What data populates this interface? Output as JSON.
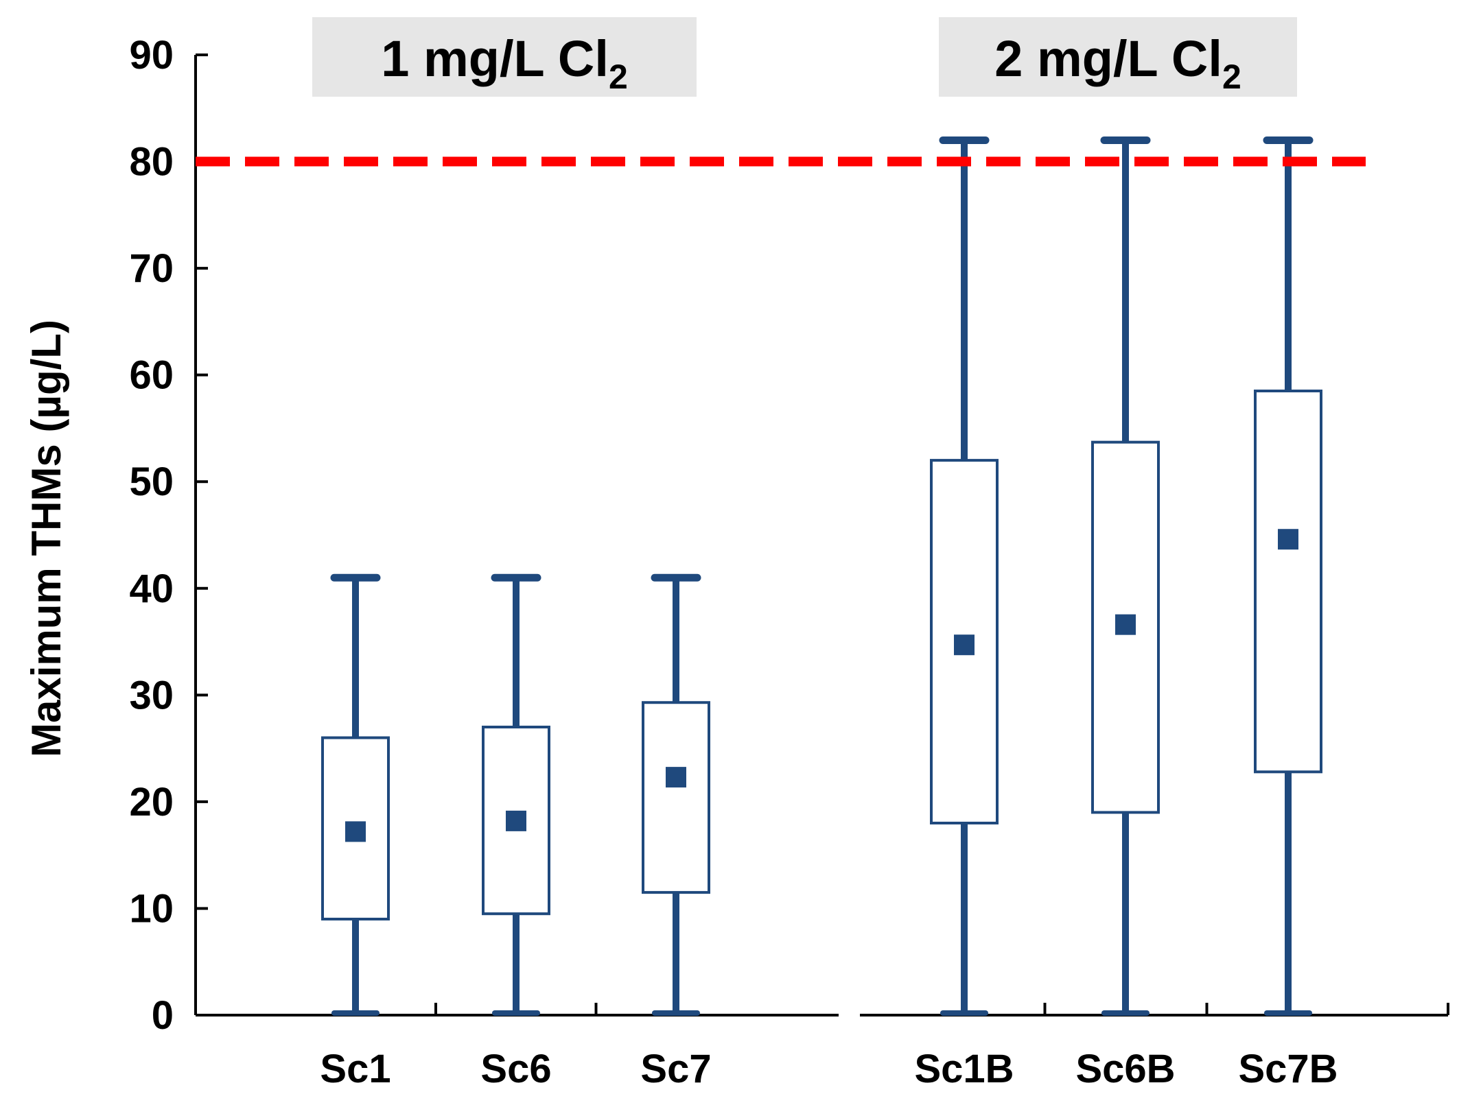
{
  "chart_data": {
    "type": "box",
    "title": "",
    "xlabel": "",
    "ylabel": "Maximum THMs  (µg/L)",
    "ylim": [
      0,
      90
    ],
    "yticks": [
      0,
      10,
      20,
      30,
      40,
      50,
      60,
      70,
      80,
      90
    ],
    "grid": false,
    "colors": {
      "box": "#1F497D",
      "reference_line": "#FF0000",
      "group_label_bg": "#E6E6E6"
    },
    "reference_line": {
      "value": 80,
      "style": "dashed"
    },
    "groups": [
      {
        "label_main": "1 mg/L Cl",
        "label_sub": "2",
        "boxes": [
          {
            "label": "Sc1",
            "min": 0,
            "q1": 9,
            "mean": 17.2,
            "q3": 26,
            "max": 41
          },
          {
            "label": "Sc6",
            "min": 0,
            "q1": 9.5,
            "mean": 18.2,
            "q3": 27,
            "max": 41
          },
          {
            "label": "Sc7",
            "min": 0,
            "q1": 11.5,
            "mean": 22.3,
            "q3": 29.3,
            "max": 41
          }
        ]
      },
      {
        "label_main": "2 mg/L Cl",
        "label_sub": "2",
        "boxes": [
          {
            "label": "Sc1B",
            "min": 0,
            "q1": 18,
            "mean": 34.7,
            "q3": 52,
            "max": 82
          },
          {
            "label": "Sc6B",
            "min": 0,
            "q1": 19,
            "mean": 36.6,
            "q3": 53.7,
            "max": 82
          },
          {
            "label": "Sc7B",
            "min": 0,
            "q1": 22.8,
            "mean": 44.6,
            "q3": 58.5,
            "max": 82
          }
        ]
      }
    ]
  }
}
